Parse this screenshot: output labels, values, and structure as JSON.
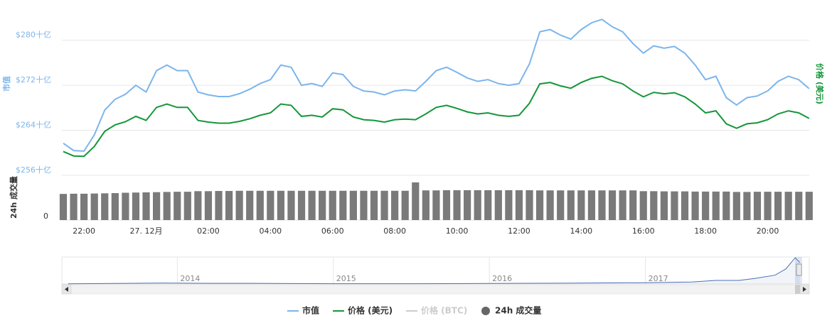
{
  "chart_data": {
    "type": "line",
    "ylabel": "市值",
    "y2label": "价格 (美元)",
    "volume_label": "24h 成交量",
    "categories": [
      null,
      null,
      "22:00",
      null,
      null,
      null,
      null,
      null,
      "27. 12月",
      null,
      null,
      null,
      null,
      null,
      "02:00",
      null,
      null,
      null,
      null,
      null,
      "04:00",
      null,
      null,
      null,
      null,
      null,
      "06:00",
      null,
      null,
      null,
      null,
      null,
      "08:00",
      null,
      null,
      null,
      null,
      null,
      "10:00",
      null,
      null,
      null,
      null,
      null,
      "12:00",
      null,
      null,
      null,
      null,
      null,
      "14:00",
      null,
      null,
      null,
      null,
      null,
      "16:00",
      null,
      null,
      null,
      null,
      null,
      "18:00",
      null,
      null,
      null,
      null,
      null,
      "20:00",
      null,
      null,
      null,
      null
    ],
    "ylim": [
      256,
      284.5
    ],
    "yticks": [
      {
        "value": 256,
        "label": "$256十亿"
      },
      {
        "value": 264,
        "label": "$264十亿"
      },
      {
        "value": 272,
        "label": "$272十亿"
      },
      {
        "value": 280,
        "label": "$280十亿"
      }
    ],
    "y2lim": [
      15200,
      18000
    ],
    "volume_lim": [
      0,
      20
    ],
    "volume_ticks": [
      0
    ],
    "grid": true,
    "series": [
      {
        "name": "市值",
        "color": "#7cb5ec",
        "axis": "y",
        "values": [
          261.7,
          260.4,
          260.3,
          263.2,
          267.6,
          269.5,
          270.4,
          272.0,
          270.8,
          274.6,
          275.6,
          274.6,
          274.6,
          270.8,
          270.3,
          270.0,
          270.0,
          270.5,
          271.3,
          272.3,
          273.0,
          275.6,
          275.2,
          272.0,
          272.3,
          271.8,
          274.2,
          273.9,
          271.8,
          271.0,
          270.8,
          270.3,
          271.0,
          271.2,
          271.0,
          272.7,
          274.6,
          275.2,
          274.3,
          273.3,
          272.7,
          273.0,
          272.3,
          272.0,
          272.3,
          275.8,
          281.5,
          281.9,
          280.9,
          280.2,
          281.9,
          283.1,
          283.7,
          282.4,
          281.5,
          279.4,
          277.7,
          279.0,
          278.6,
          278.9,
          277.7,
          275.6,
          273.0,
          273.6,
          269.8,
          268.5,
          269.8,
          270.1,
          271.0,
          272.7,
          273.6,
          273.0,
          271.4
        ]
      },
      {
        "name": "价格 (美元)",
        "color": "#14973a",
        "axis": "y2",
        "values": [
          15616,
          15538,
          15532,
          15705,
          15968,
          16081,
          16135,
          16230,
          16159,
          16386,
          16445,
          16386,
          16386,
          16159,
          16129,
          16111,
          16111,
          16141,
          16188,
          16248,
          16290,
          16445,
          16421,
          16230,
          16248,
          16218,
          16362,
          16344,
          16218,
          16171,
          16159,
          16129,
          16171,
          16183,
          16171,
          16272,
          16386,
          16421,
          16368,
          16308,
          16272,
          16290,
          16248,
          16230,
          16248,
          16457,
          16797,
          16821,
          16761,
          16720,
          16821,
          16893,
          16928,
          16851,
          16797,
          16672,
          16570,
          16648,
          16624,
          16642,
          16570,
          16445,
          16290,
          16326,
          16099,
          16021,
          16099,
          16117,
          16171,
          16272,
          16326,
          16290,
          16195
        ]
      },
      {
        "name": "24h 成交量",
        "color": "#7a7a7a",
        "axis": "volume",
        "values": [
          13.4,
          13.5,
          13.5,
          13.6,
          13.7,
          13.8,
          14.0,
          14.1,
          14.2,
          14.3,
          14.4,
          14.5,
          14.5,
          14.8,
          14.8,
          14.9,
          14.9,
          15.0,
          15.0,
          15.0,
          15.0,
          15.0,
          15.0,
          15.0,
          15.0,
          15.0,
          15.0,
          15.0,
          15.0,
          15.0,
          15.0,
          15.0,
          15.0,
          15.0,
          19.3,
          15.2,
          15.2,
          15.3,
          15.3,
          15.3,
          15.3,
          15.3,
          15.3,
          15.3,
          15.3,
          15.3,
          15.2,
          15.2,
          15.2,
          15.2,
          15.2,
          15.2,
          15.2,
          15.2,
          15.2,
          15.2,
          14.8,
          14.8,
          14.7,
          14.7,
          14.7,
          14.6,
          14.6,
          14.6,
          14.6,
          14.4,
          14.4,
          14.5,
          14.5,
          14.5,
          14.5,
          14.5,
          14.5
        ]
      }
    ],
    "hidden_series": [
      {
        "name": "价格 (BTC)",
        "color": "#cccccc"
      }
    ],
    "navigator": {
      "type": "line",
      "color": "#4a6fb5",
      "x": [
        2013.3,
        2013.9,
        2014.2,
        2014.5,
        2015.0,
        2015.5,
        2016.0,
        2016.5,
        2017.0,
        2017.3,
        2017.45,
        2017.6,
        2017.7,
        2017.83,
        2017.9,
        2017.96,
        2017.99
      ],
      "values": [
        1.5,
        12,
        8,
        8,
        3.5,
        3.5,
        6,
        10,
        16,
        25,
        45,
        45,
        70,
        110,
        190,
        330,
        270
      ],
      "xlim": [
        2013.26,
        2018.0
      ],
      "xticks": [
        2014,
        2015,
        2016,
        2017
      ],
      "ylim": [
        0,
        340
      ]
    }
  }
}
